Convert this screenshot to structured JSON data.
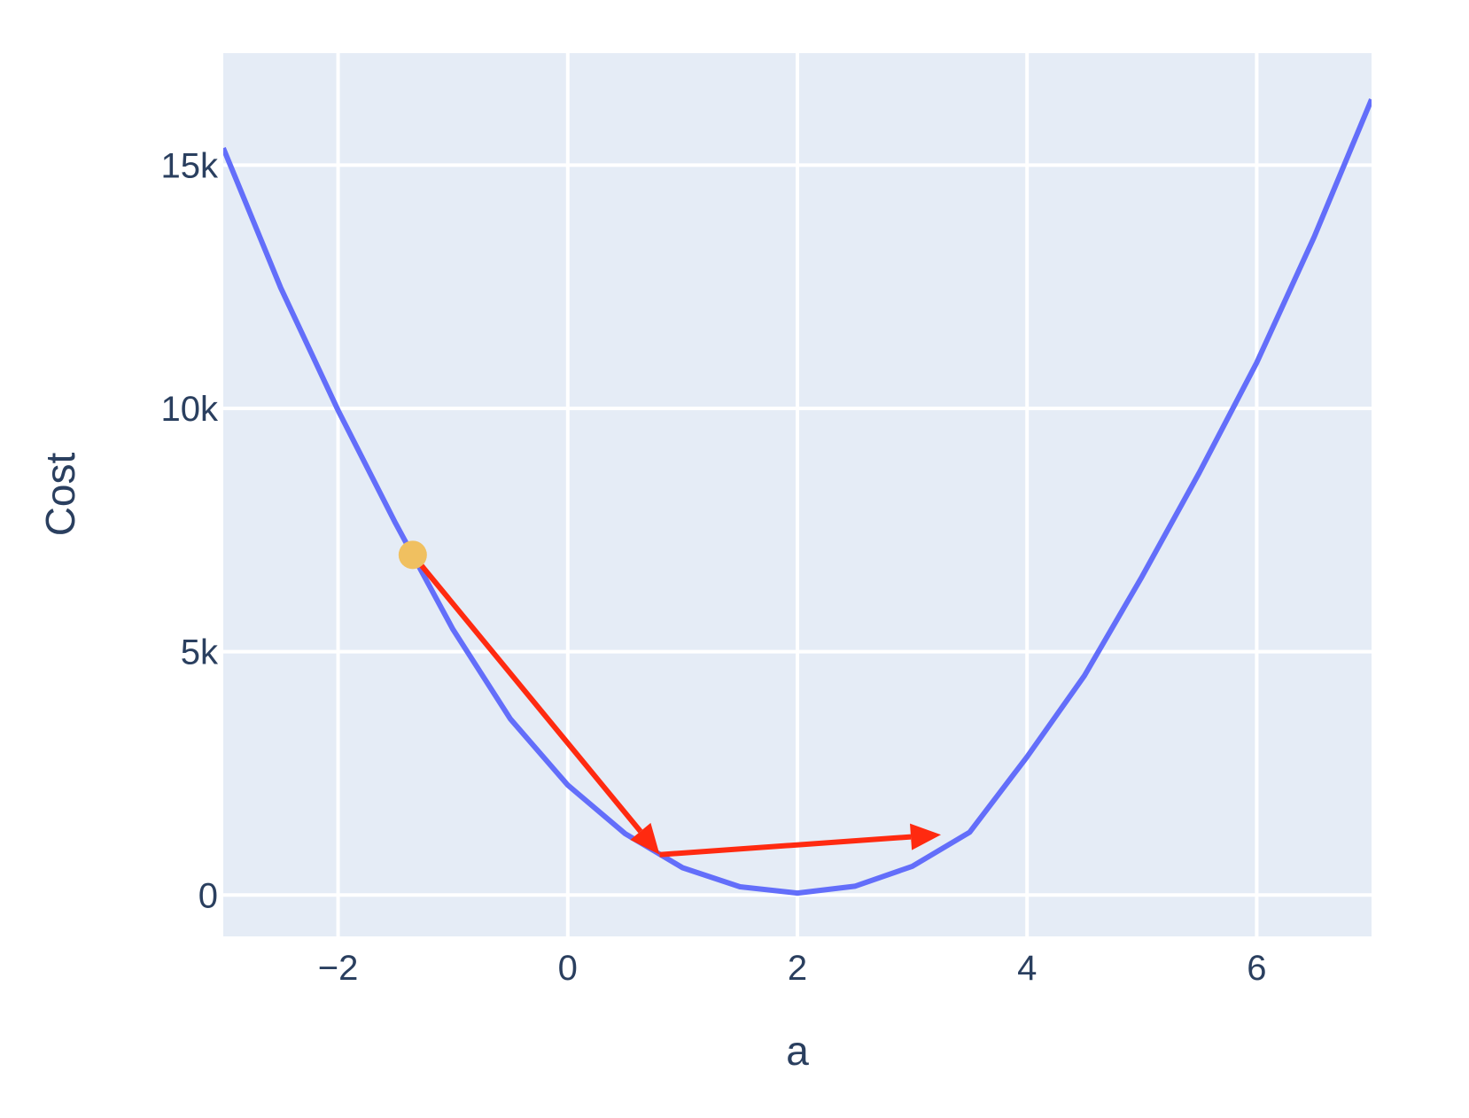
{
  "chart_data": {
    "type": "line",
    "title": "",
    "xlabel": "a",
    "ylabel": "Cost",
    "xlim": [
      -3,
      7
    ],
    "ylim": [
      -850,
      17300
    ],
    "x_ticks": [
      {
        "value": -2,
        "label": "−2"
      },
      {
        "value": 0,
        "label": "0"
      },
      {
        "value": 2,
        "label": "2"
      },
      {
        "value": 4,
        "label": "4"
      },
      {
        "value": 6,
        "label": "6"
      }
    ],
    "y_ticks": [
      {
        "value": 0,
        "label": "0"
      },
      {
        "value": 5000,
        "label": "5k"
      },
      {
        "value": 10000,
        "label": "10k"
      },
      {
        "value": 15000,
        "label": "15k"
      }
    ],
    "grid": true,
    "legend": "none",
    "colors": {
      "plot_bg": "#e5ecf6",
      "grid": "#ffffff",
      "curve": "#636efa",
      "point": "#f0c060",
      "arrow": "#ff2a10",
      "text": "#2a3f5f"
    },
    "series": [
      {
        "x": [
          -3,
          -2.5,
          -2,
          -1.5,
          -1,
          -0.5,
          0,
          0.5,
          1,
          1.5,
          2,
          2.5,
          3,
          3.5,
          4,
          4.5,
          5,
          5.5,
          6,
          6.5,
          7
        ],
        "y": [
          15350,
          12480,
          9960,
          7640,
          5460,
          3620,
          2260,
          1260,
          560,
          170,
          40,
          180,
          590,
          1290,
          2840,
          4510,
          6540,
          8680,
          10940,
          13520,
          16350
        ]
      }
    ],
    "annotations": [
      {
        "type": "point",
        "x": -1.35,
        "y": 6990
      },
      {
        "type": "arrow",
        "from": {
          "x": -1.35,
          "y": 6990
        },
        "to": {
          "x": 0.8,
          "y": 830
        }
      },
      {
        "type": "arrow",
        "from": {
          "x": 0.8,
          "y": 830
        },
        "to": {
          "x": 3.25,
          "y": 1240
        }
      }
    ]
  }
}
